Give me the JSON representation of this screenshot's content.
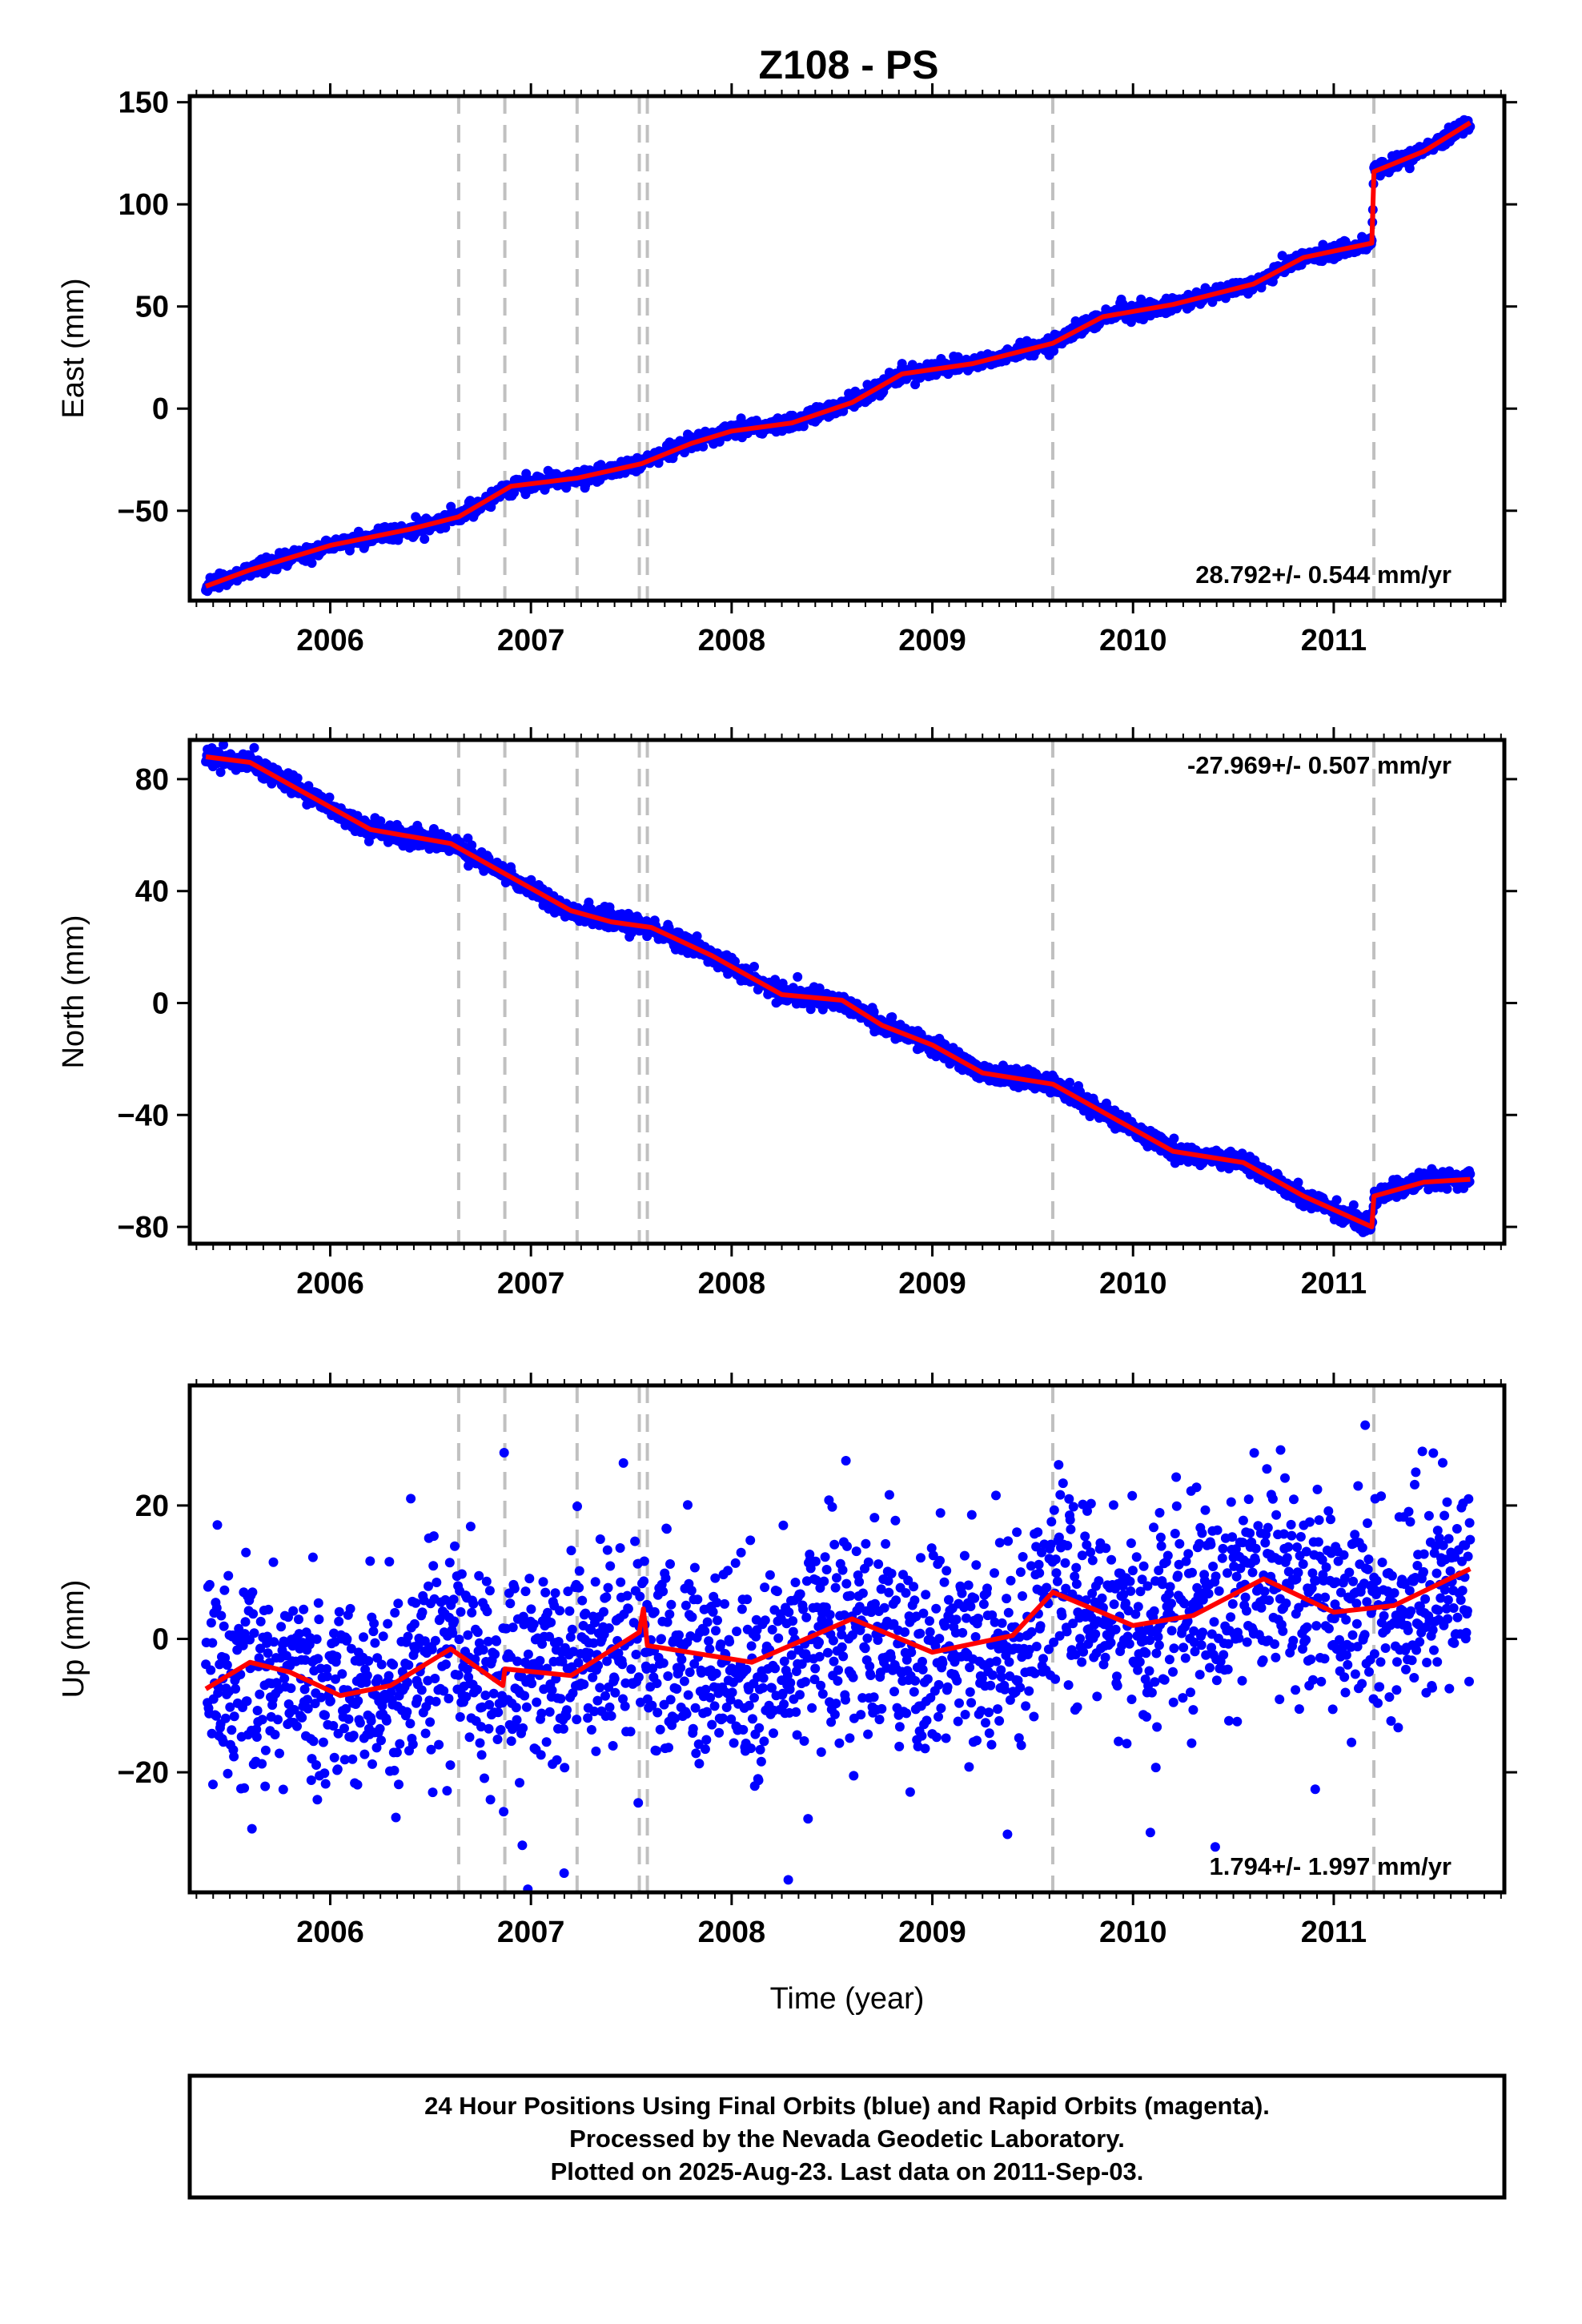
{
  "page_title": "Z108 - PS",
  "x_axis_label": "Time (year)",
  "footer": {
    "line1": "24 Hour Positions Using Final Orbits (blue) and Rapid Orbits (magenta).",
    "line2": "Processed by the Nevada Geodetic Laboratory.",
    "line3": "Plotted on 2025-Aug-23. Last data on 2011-Sep-03."
  },
  "colors": {
    "points": "#0000ff",
    "model": "#ff0000",
    "event_lines": "#c0c0c0",
    "axes": "#000000"
  },
  "chart_data": [
    {
      "type": "scatter",
      "component": "east",
      "ylabel": "East (mm)",
      "rate_label": "28.792+/- 0.544 mm/yr",
      "rate_position": "bottom-right",
      "xlim": [
        2005.3,
        2011.85
      ],
      "ylim": [
        -94,
        153
      ],
      "x_ticks": [
        2006,
        2007,
        2008,
        2009,
        2010,
        2011
      ],
      "x_tick_labels": [
        "2006",
        "2007",
        "2008",
        "2009",
        "2010",
        "2011"
      ],
      "y_ticks": [
        -50,
        0,
        50,
        100,
        150
      ],
      "y_tick_labels": [
        "−50",
        "0",
        "50",
        "100",
        "150"
      ],
      "noise_mm": 1.8,
      "model": [
        [
          2005.38,
          -87
        ],
        [
          2005.6,
          -79
        ],
        [
          2006.0,
          -67
        ],
        [
          2006.4,
          -59
        ],
        [
          2006.64,
          -53
        ],
        [
          2006.9,
          -38
        ],
        [
          2007.23,
          -34
        ],
        [
          2007.55,
          -27
        ],
        [
          2007.8,
          -17
        ],
        [
          2008.0,
          -11
        ],
        [
          2008.3,
          -7
        ],
        [
          2008.6,
          3
        ],
        [
          2008.85,
          17
        ],
        [
          2009.2,
          22
        ],
        [
          2009.6,
          32
        ],
        [
          2009.85,
          45
        ],
        [
          2010.2,
          51
        ],
        [
          2010.6,
          61
        ],
        [
          2010.85,
          74
        ],
        [
          2011.19,
          81
        ],
        [
          2011.2,
          116
        ],
        [
          2011.45,
          126
        ],
        [
          2011.68,
          140
        ]
      ],
      "grid": false
    },
    {
      "type": "scatter",
      "component": "north",
      "ylabel": "North (mm)",
      "rate_label": "-27.969+/- 0.507 mm/yr",
      "rate_position": "top-right",
      "xlim": [
        2005.3,
        2011.85
      ],
      "ylim": [
        -86,
        94
      ],
      "x_ticks": [
        2006,
        2007,
        2008,
        2009,
        2010,
        2011
      ],
      "x_tick_labels": [
        "2006",
        "2007",
        "2008",
        "2009",
        "2010",
        "2011"
      ],
      "y_ticks": [
        -80,
        -40,
        0,
        40,
        80
      ],
      "y_tick_labels": [
        "−80",
        "−40",
        "0",
        "40",
        "80"
      ],
      "noise_mm": 1.6,
      "model": [
        [
          2005.38,
          88
        ],
        [
          2005.6,
          86
        ],
        [
          2005.9,
          74
        ],
        [
          2006.2,
          62
        ],
        [
          2006.6,
          57
        ],
        [
          2006.85,
          47
        ],
        [
          2007.2,
          33
        ],
        [
          2007.4,
          29
        ],
        [
          2007.6,
          27
        ],
        [
          2007.9,
          17
        ],
        [
          2008.25,
          3
        ],
        [
          2008.55,
          1
        ],
        [
          2008.75,
          -8
        ],
        [
          2009.0,
          -15
        ],
        [
          2009.25,
          -25
        ],
        [
          2009.6,
          -29
        ],
        [
          2009.8,
          -37
        ],
        [
          2010.2,
          -53
        ],
        [
          2010.55,
          -57
        ],
        [
          2010.85,
          -69
        ],
        [
          2011.19,
          -80
        ],
        [
          2011.2,
          -69
        ],
        [
          2011.45,
          -64
        ],
        [
          2011.68,
          -63
        ]
      ],
      "grid": false
    },
    {
      "type": "scatter",
      "component": "up",
      "ylabel": "Up (mm)",
      "rate_label": "1.794+/- 1.997 mm/yr",
      "rate_position": "bottom-right",
      "xlim": [
        2005.3,
        2011.85
      ],
      "ylim": [
        -38,
        38
      ],
      "x_ticks": [
        2006,
        2007,
        2008,
        2009,
        2010,
        2011
      ],
      "x_tick_labels": [
        "2006",
        "2007",
        "2008",
        "2009",
        "2010",
        "2011"
      ],
      "y_ticks": [
        -20,
        0,
        20
      ],
      "y_tick_labels": [
        "−20",
        "0",
        "20"
      ],
      "noise_mm": 7.5,
      "model": [
        [
          2005.38,
          -7.5
        ],
        [
          2005.6,
          -3.5
        ],
        [
          2005.8,
          -5
        ],
        [
          2006.05,
          -8.5
        ],
        [
          2006.3,
          -7
        ],
        [
          2006.6,
          -1.5
        ],
        [
          2006.86,
          -7
        ],
        [
          2006.87,
          -4.5
        ],
        [
          2007.2,
          -5.5
        ],
        [
          2007.54,
          1
        ],
        [
          2007.56,
          4.5
        ],
        [
          2007.58,
          -1
        ],
        [
          2008.1,
          -3.5
        ],
        [
          2008.6,
          3
        ],
        [
          2009.0,
          -2
        ],
        [
          2009.4,
          0.5
        ],
        [
          2009.6,
          7
        ],
        [
          2010.0,
          2
        ],
        [
          2010.3,
          3.5
        ],
        [
          2010.65,
          9
        ],
        [
          2011.0,
          4
        ],
        [
          2011.3,
          5
        ],
        [
          2011.68,
          10.5
        ]
      ],
      "grid": false
    }
  ],
  "event_lines_years": [
    2006.64,
    2006.87,
    2007.23,
    2007.54,
    2007.58,
    2009.6,
    2011.2
  ],
  "data_range_years": [
    2005.38,
    2011.68
  ]
}
